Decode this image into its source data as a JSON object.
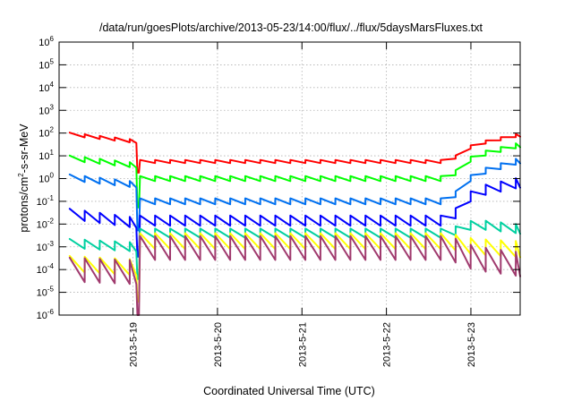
{
  "chart_data": {
    "type": "line",
    "title": "/data/run/goesPlots/archive/2013-05-23/14:00/flux/../flux/5daysMarsFluxes.txt",
    "xlabel": "Coordinated Universal Time (UTC)",
    "ylabel": {
      "base": "protons/cm",
      "exponent": "2",
      "rest": "-s-sr-MeV"
    },
    "y_scale": "log",
    "ylim_exponents": [
      -6,
      6
    ],
    "y_tick_base": "10",
    "y_tick_exponents": [
      "-6",
      "-5",
      "-4",
      "-3",
      "-2",
      "-1",
      "0",
      "1",
      "2",
      "3",
      "4",
      "5",
      "6"
    ],
    "x_range_days": [
      "2013-05-18 03:00",
      "2013-05-23 14:00"
    ],
    "x_tick_labels": [
      "2013-5-19",
      "2013-5-20",
      "2013-5-21",
      "2013-5-22",
      "2013-5-23"
    ],
    "grid": true,
    "legend": "none",
    "period_hours": 4.27,
    "spike_hours": 21.95,
    "spike_jump_hours": 23.0,
    "series": [
      {
        "color": "#ff0000",
        "amp": 0.14,
        "pre": [
          [
            3.0,
            1.95
          ],
          [
            27,
            1.55
          ],
          [
            51,
            1.25
          ],
          [
            63,
            1.05
          ],
          [
            75,
            0.9
          ],
          [
            96,
            0.75
          ],
          [
            105,
            0.6
          ],
          [
            108,
            0.45
          ],
          [
            109.6,
            0.35
          ],
          [
            110.2,
            0.3
          ]
        ],
        "post": [
          [
            110.8,
            0.75
          ],
          [
            118,
            1.5
          ],
          [
            130,
            1.9
          ],
          [
            134,
            1.95
          ]
        ]
      },
      {
        "color": "#00ff00",
        "amp": 0.22,
        "pre": [
          [
            3.0,
            0.9
          ],
          [
            27,
            0.5
          ],
          [
            51,
            0.25
          ],
          [
            63,
            -0.1
          ],
          [
            75,
            -0.3
          ],
          [
            96,
            -0.55
          ],
          [
            105,
            -0.75
          ],
          [
            108,
            -0.95
          ],
          [
            109.6,
            -1.05
          ],
          [
            110.2,
            -1.2
          ]
        ],
        "post": [
          [
            110.8,
            0.0
          ],
          [
            118,
            1.0
          ],
          [
            130,
            1.45
          ],
          [
            134,
            1.6
          ]
        ]
      },
      {
        "color": "#0070f0",
        "amp": 0.26,
        "pre": [
          [
            3.0,
            0.05
          ],
          [
            27,
            -0.35
          ],
          [
            51,
            -0.65
          ],
          [
            63,
            -0.9
          ],
          [
            75,
            -1.15
          ],
          [
            96,
            -1.35
          ],
          [
            105,
            -1.55
          ],
          [
            108,
            -1.8
          ],
          [
            109.6,
            -2.0
          ],
          [
            110.2,
            -2.2
          ]
        ],
        "post": [
          [
            110.8,
            -1.0
          ],
          [
            118,
            0.2
          ],
          [
            130,
            0.75
          ],
          [
            134,
            0.95
          ]
        ]
      },
      {
        "color": "#0000ff",
        "amp": 0.45,
        "pre": [
          [
            3.0,
            -1.55
          ],
          [
            27,
            -2.05
          ],
          [
            51,
            -2.3
          ],
          [
            63,
            -2.5
          ],
          [
            75,
            -2.65
          ],
          [
            96,
            -2.8
          ],
          [
            105,
            -2.95
          ],
          [
            108,
            -3.1
          ],
          [
            109.6,
            -3.2
          ],
          [
            110.2,
            -3.3
          ]
        ],
        "post": [
          [
            110.8,
            -1.85
          ],
          [
            118,
            -0.6
          ],
          [
            130,
            -0.2
          ],
          [
            134,
            -0.1
          ]
        ]
      },
      {
        "color": "#00d0a0",
        "amp": 0.4,
        "pre": [
          [
            3.0,
            -2.85
          ],
          [
            27,
            -3.05
          ],
          [
            51,
            -3.2
          ],
          [
            63,
            -3.3
          ],
          [
            75,
            -3.45
          ],
          [
            96,
            -3.6
          ],
          [
            105,
            -3.75
          ],
          [
            108,
            -3.9
          ],
          [
            109.6,
            -4.1
          ],
          [
            110.2,
            -4.3
          ]
        ],
        "post": [
          [
            110.8,
            -2.4
          ],
          [
            118,
            -2.0
          ],
          [
            130,
            -2.2
          ],
          [
            134,
            -2.3
          ]
        ]
      },
      {
        "color": "#ffff00",
        "amp": 0.7,
        "pre": [
          [
            3.0,
            -3.75
          ],
          [
            27,
            -3.95
          ],
          [
            51,
            -4.05
          ],
          [
            63,
            -4.15
          ],
          [
            75,
            -4.25
          ],
          [
            96,
            -4.4
          ],
          [
            105,
            -4.55
          ],
          [
            108,
            -4.85
          ],
          [
            109.6,
            -5.05
          ],
          [
            110.2,
            -5.2
          ]
        ],
        "post": [
          [
            110.8,
            -2.75
          ],
          [
            118,
            -3.0
          ],
          [
            130,
            -3.1
          ],
          [
            134,
            -3.15
          ]
        ]
      },
      {
        "color": "#a03a6e",
        "amp": 1.05,
        "pre": [
          [
            3.0,
            -4.0
          ],
          [
            27,
            -4.15
          ],
          [
            51,
            -4.25
          ],
          [
            63,
            -4.35
          ],
          [
            75,
            -4.45
          ],
          [
            96,
            -4.6
          ],
          [
            105,
            -4.75
          ],
          [
            108,
            -5.2
          ],
          [
            109.6,
            -5.55
          ],
          [
            110.2,
            -5.7
          ]
        ],
        "post": [
          [
            110.8,
            -3.05
          ],
          [
            118,
            -3.5
          ],
          [
            130,
            -3.75
          ],
          [
            134,
            -3.85
          ]
        ]
      }
    ]
  }
}
